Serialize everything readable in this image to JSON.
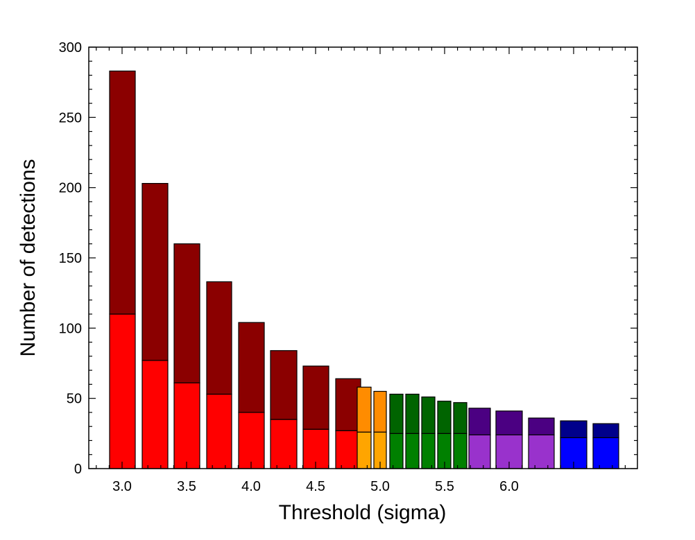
{
  "chart_data": {
    "type": "bar",
    "stacked": true,
    "xlabel": "Threshold (sigma)",
    "ylabel": "Number of detections",
    "xlim": [
      2.85,
      6.1
    ],
    "ylim": [
      0,
      300
    ],
    "x_ticks": [
      "3.0",
      "3.5",
      "4.0",
      "4.5",
      "5.0",
      "5.5",
      "6.0"
    ],
    "y_ticks": [
      "0",
      "50",
      "100",
      "150",
      "200",
      "250",
      "300"
    ],
    "grid": false,
    "legend": "none",
    "bars": [
      {
        "x_start": 2.9,
        "x_end": 3.1,
        "lower": 110,
        "total": 283,
        "lower_color": "#ff0000",
        "upper_color": "#8b0000"
      },
      {
        "x_start": 3.15,
        "x_end": 3.35,
        "lower": 77,
        "total": 203,
        "lower_color": "#ff0000",
        "upper_color": "#8b0000"
      },
      {
        "x_start": 3.4,
        "x_end": 3.6,
        "lower": 61,
        "total": 160,
        "lower_color": "#ff0000",
        "upper_color": "#8b0000"
      },
      {
        "x_start": 3.65,
        "x_end": 3.85,
        "lower": 53,
        "total": 133,
        "lower_color": "#ff0000",
        "upper_color": "#8b0000"
      },
      {
        "x_start": 3.9,
        "x_end": 4.1,
        "lower": 40,
        "total": 104,
        "lower_color": "#ff0000",
        "upper_color": "#8b0000"
      },
      {
        "x_start": 4.15,
        "x_end": 4.35,
        "lower": 35,
        "total": 84,
        "lower_color": "#ff0000",
        "upper_color": "#8b0000"
      },
      {
        "x_start": 4.4,
        "x_end": 4.6,
        "lower": 28,
        "total": 73,
        "lower_color": "#ff0000",
        "upper_color": "#8b0000"
      },
      {
        "x_start": 4.65,
        "x_end": 4.85,
        "lower": 27,
        "total": 64,
        "lower_color": "#ff0000",
        "upper_color": "#8b0000"
      },
      {
        "x_start": 4.87,
        "x_end": 4.97,
        "lower": 26,
        "total": 58,
        "lower_color": "#ffa500",
        "upper_color": "#ff8c00"
      },
      {
        "x_start": 5.0,
        "x_end": 5.1,
        "lower": 26,
        "total": 55,
        "lower_color": "#ffa500",
        "upper_color": "#ff8c00"
      },
      {
        "x_start": 5.12,
        "x_end": 5.22,
        "lower": 25,
        "total": 53,
        "lower_color": "#008000",
        "upper_color": "#006400"
      },
      {
        "x_start": 5.25,
        "x_end": 5.35,
        "lower": 25,
        "total": 53,
        "lower_color": "#008000",
        "upper_color": "#006400"
      },
      {
        "x_start": 5.37,
        "x_end": 5.47,
        "lower": 25,
        "total": 51,
        "lower_color": "#008000",
        "upper_color": "#006400"
      },
      {
        "x_start": 5.5,
        "x_end": 5.6,
        "lower": 25,
        "total": 48,
        "lower_color": "#008000",
        "upper_color": "#006400"
      },
      {
        "x_start": 5.62,
        "x_end": 5.72,
        "lower": 25,
        "total": 47,
        "lower_color": "#008000",
        "upper_color": "#006400"
      },
      {
        "x_start": 5.75,
        "x_end": 5.92,
        "lower": 24,
        "total": 43,
        "lower_color": "#9932cc",
        "upper_color": "#4b0082"
      },
      {
        "x_start": 5.95,
        "x_end": 6.15,
        "lower": 24,
        "total": 41,
        "lower_color": "#9932cc",
        "upper_color": "#4b0082"
      },
      {
        "x_start": 6.2,
        "x_end": 6.4,
        "lower": 24,
        "total": 36,
        "lower_color": "#9932cc",
        "upper_color": "#4b0082"
      },
      {
        "x_start": 6.45,
        "x_end": 6.65,
        "lower": 22,
        "total": 34,
        "lower_color": "#0000ff",
        "upper_color": "#00008b"
      },
      {
        "x_start": 6.7,
        "x_end": 6.9,
        "lower": 22,
        "total": 32,
        "lower_color": "#0000ff",
        "upper_color": "#00008b"
      }
    ]
  }
}
